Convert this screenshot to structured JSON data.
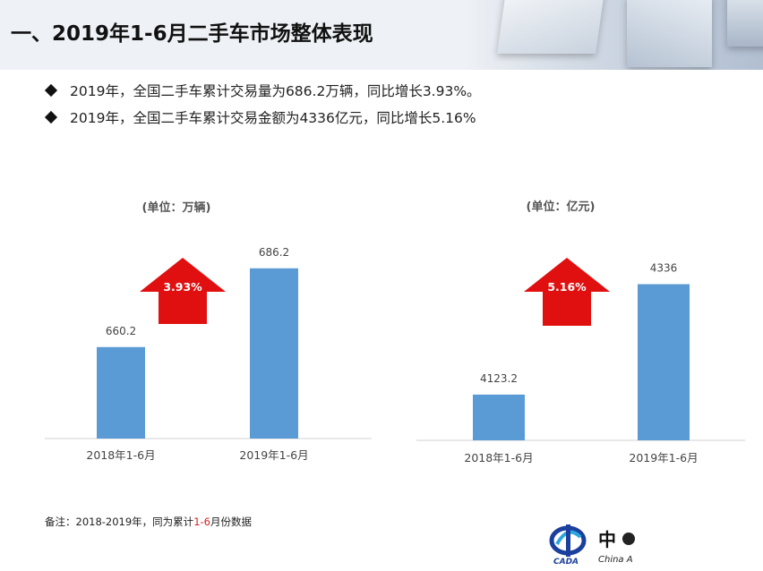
{
  "header": {
    "title": "一、2019年1-6月二手车市场整体表现"
  },
  "bullets": [
    "2019年，全国二手车累计交易量为686.2万辆，同比增长3.93%。",
    "2019年，全国二手车累计交易金额为4336亿元，同比增长5.16%"
  ],
  "chart_data": [
    {
      "type": "bar",
      "title": "(单位：万辆)",
      "categories": [
        "2018年1-6月",
        "2019年1-6月"
      ],
      "values": [
        660.2,
        686.2
      ],
      "value_labels": [
        "660.2",
        "686.2"
      ],
      "ylim": [
        630,
        695
      ],
      "arrow_label": "3.93%",
      "bar_color": "#5b9bd5",
      "arrow_color": "#e01010"
    },
    {
      "type": "bar",
      "title": "(单位：亿元)",
      "categories": [
        "2018年1-6月",
        "2019年1-6月"
      ],
      "values": [
        4123.2,
        4336
      ],
      "value_labels": [
        "4123.2",
        "4336"
      ],
      "ylim": [
        4035,
        4380
      ],
      "arrow_label": "5.16%",
      "bar_color": "#5b9bd5",
      "arrow_color": "#e01010"
    }
  ],
  "footnote": {
    "prefix": "备注：2018-2019年，同为累计",
    "highlight": "1-6",
    "suffix": "月份数据"
  },
  "logo": {
    "cn": "中",
    "en": "China A",
    "abbr": "CADA"
  }
}
